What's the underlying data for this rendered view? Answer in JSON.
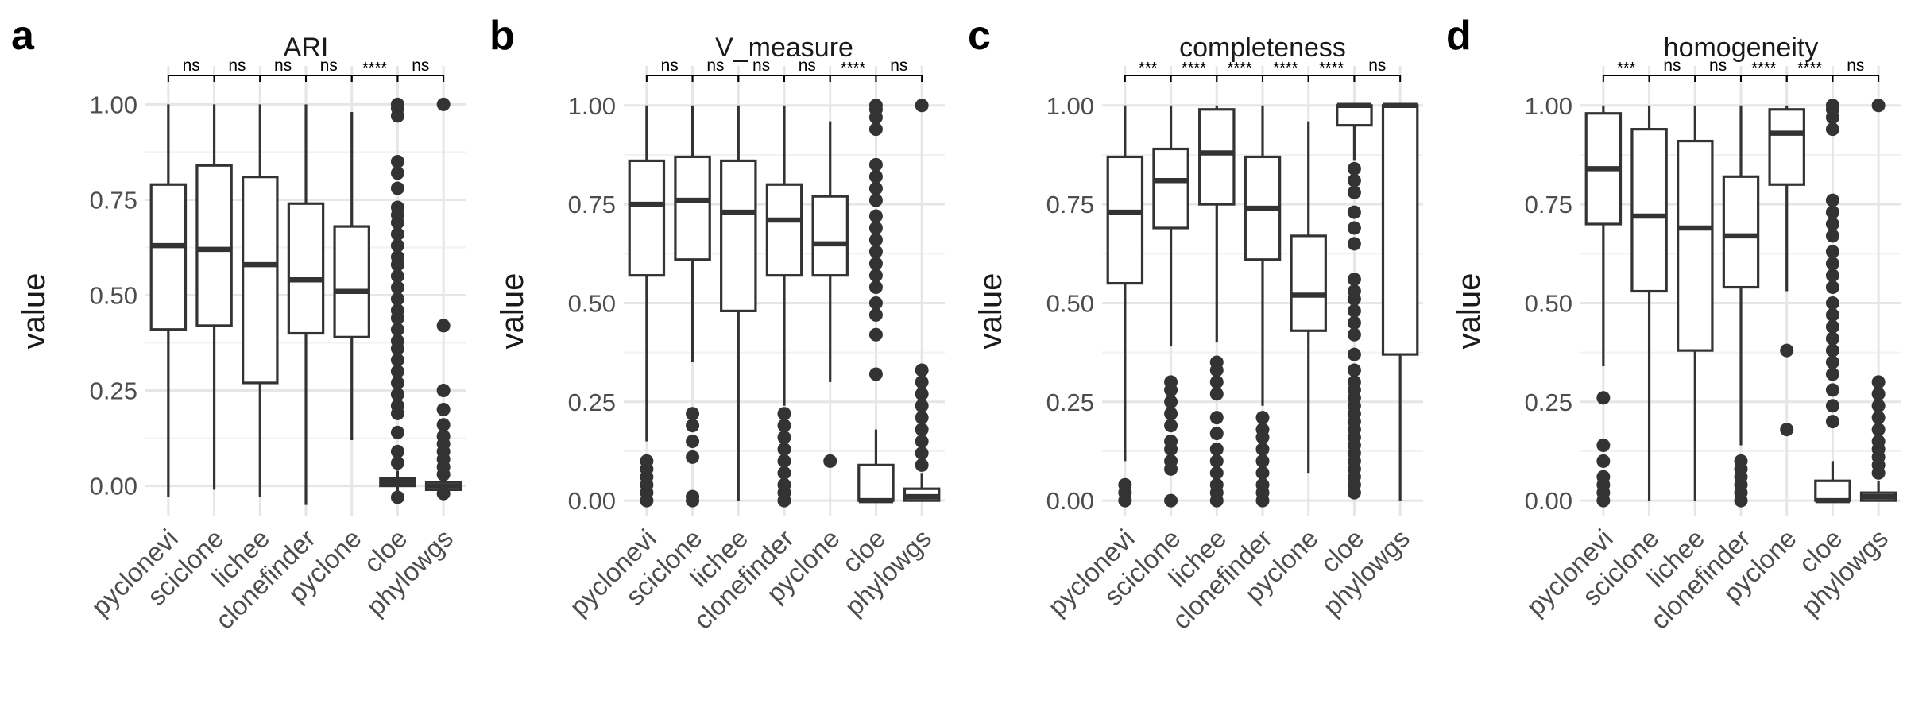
{
  "chart_data": [
    {
      "type": "box",
      "panel_label": "a",
      "title": "ARI",
      "ylabel": "value",
      "categories": [
        "pyclonevi",
        "sciclone",
        "lichee",
        "clonefinder",
        "pyclone",
        "cloe",
        "phylowgs"
      ],
      "ylim": [
        -0.08,
        1.08
      ],
      "yticks": [
        0.0,
        0.25,
        0.5,
        0.75,
        1.0
      ],
      "ytick_labels": [
        "0.00",
        "0.25",
        "0.50",
        "0.75",
        "1.00"
      ],
      "significance": [
        "ns",
        "ns",
        "ns",
        "ns",
        "****",
        "ns"
      ],
      "boxes": [
        {
          "category": "pyclonevi",
          "whisker_low": -0.03,
          "q1": 0.41,
          "median": 0.63,
          "q3": 0.79,
          "whisker_high": 1.0,
          "outliers": []
        },
        {
          "category": "sciclone",
          "whisker_low": -0.01,
          "q1": 0.42,
          "median": 0.62,
          "q3": 0.84,
          "whisker_high": 1.0,
          "outliers": []
        },
        {
          "category": "lichee",
          "whisker_low": -0.03,
          "q1": 0.27,
          "median": 0.58,
          "q3": 0.81,
          "whisker_high": 1.0,
          "outliers": []
        },
        {
          "category": "clonefinder",
          "whisker_low": -0.05,
          "q1": 0.4,
          "median": 0.54,
          "q3": 0.74,
          "whisker_high": 1.0,
          "outliers": []
        },
        {
          "category": "pyclone",
          "whisker_low": 0.12,
          "q1": 0.39,
          "median": 0.51,
          "q3": 0.68,
          "whisker_high": 0.98,
          "outliers": []
        },
        {
          "category": "cloe",
          "whisker_low": -0.02,
          "q1": 0.0,
          "median": 0.01,
          "q3": 0.02,
          "whisker_high": 0.04,
          "outliers": [
            -0.03,
            0.06,
            0.09,
            0.14,
            0.19,
            0.21,
            0.24,
            0.27,
            0.3,
            0.33,
            0.36,
            0.38,
            0.41,
            0.44,
            0.46,
            0.49,
            0.52,
            0.55,
            0.58,
            0.6,
            0.63,
            0.66,
            0.69,
            0.71,
            0.73,
            0.78,
            0.82,
            0.85,
            0.97,
            0.99,
            1.0
          ]
        },
        {
          "category": "phylowgs",
          "whisker_low": -0.01,
          "q1": -0.01,
          "median": 0.0,
          "q3": 0.01,
          "whisker_high": 0.02,
          "outliers": [
            -0.02,
            0.03,
            0.05,
            0.07,
            0.09,
            0.11,
            0.13,
            0.16,
            0.2,
            0.25,
            0.42,
            1.0
          ]
        }
      ]
    },
    {
      "type": "box",
      "panel_label": "b",
      "title": "V_measure",
      "ylabel": "value",
      "categories": [
        "pyclonevi",
        "sciclone",
        "lichee",
        "clonefinder",
        "pyclone",
        "cloe",
        "phylowgs"
      ],
      "ylim": [
        -0.04,
        1.08
      ],
      "yticks": [
        0.0,
        0.25,
        0.5,
        0.75,
        1.0
      ],
      "ytick_labels": [
        "0.00",
        "0.25",
        "0.50",
        "0.75",
        "1.00"
      ],
      "significance": [
        "ns",
        "ns",
        "ns",
        "ns",
        "****",
        "ns"
      ],
      "boxes": [
        {
          "category": "pyclonevi",
          "whisker_low": 0.15,
          "q1": 0.57,
          "median": 0.75,
          "q3": 0.86,
          "whisker_high": 1.0,
          "outliers": [
            0.0,
            0.02,
            0.04,
            0.06,
            0.08,
            0.1
          ]
        },
        {
          "category": "sciclone",
          "whisker_low": 0.35,
          "q1": 0.61,
          "median": 0.76,
          "q3": 0.87,
          "whisker_high": 1.0,
          "outliers": [
            0.0,
            0.01,
            0.11,
            0.15,
            0.19,
            0.22
          ]
        },
        {
          "category": "lichee",
          "whisker_low": 0.0,
          "q1": 0.48,
          "median": 0.73,
          "q3": 0.86,
          "whisker_high": 1.0,
          "outliers": []
        },
        {
          "category": "clonefinder",
          "whisker_low": 0.24,
          "q1": 0.57,
          "median": 0.71,
          "q3": 0.8,
          "whisker_high": 1.0,
          "outliers": [
            0.0,
            0.02,
            0.04,
            0.07,
            0.1,
            0.13,
            0.16,
            0.19,
            0.22
          ]
        },
        {
          "category": "pyclone",
          "whisker_low": 0.3,
          "q1": 0.57,
          "median": 0.65,
          "q3": 0.77,
          "whisker_high": 0.96,
          "outliers": [
            0.1
          ]
        },
        {
          "category": "cloe",
          "whisker_low": 0.0,
          "q1": 0.0,
          "median": 0.0,
          "q3": 0.09,
          "whisker_high": 0.18,
          "outliers": [
            0.32,
            0.42,
            0.47,
            0.5,
            0.54,
            0.57,
            0.6,
            0.63,
            0.66,
            0.69,
            0.72,
            0.76,
            0.79,
            0.82,
            0.85,
            0.94,
            0.97,
            0.99,
            1.0
          ]
        },
        {
          "category": "phylowgs",
          "whisker_low": 0.0,
          "q1": 0.0,
          "median": 0.01,
          "q3": 0.03,
          "whisker_high": 0.07,
          "outliers": [
            0.09,
            0.12,
            0.15,
            0.18,
            0.21,
            0.24,
            0.27,
            0.3,
            0.33,
            1.0
          ]
        }
      ]
    },
    {
      "type": "box",
      "panel_label": "c",
      "title": "completeness",
      "ylabel": "value",
      "categories": [
        "pyclonevi",
        "sciclone",
        "lichee",
        "clonefinder",
        "pyclone",
        "cloe",
        "phylowgs"
      ],
      "ylim": [
        -0.04,
        1.08
      ],
      "yticks": [
        0.0,
        0.25,
        0.5,
        0.75,
        1.0
      ],
      "ytick_labels": [
        "0.00",
        "0.25",
        "0.50",
        "0.75",
        "1.00"
      ],
      "significance": [
        "***",
        "****",
        "****",
        "****",
        "****",
        "ns"
      ],
      "boxes": [
        {
          "category": "pyclonevi",
          "whisker_low": 0.1,
          "q1": 0.55,
          "median": 0.73,
          "q3": 0.87,
          "whisker_high": 1.0,
          "outliers": [
            0.0,
            0.02,
            0.04
          ]
        },
        {
          "category": "sciclone",
          "whisker_low": 0.39,
          "q1": 0.69,
          "median": 0.81,
          "q3": 0.89,
          "whisker_high": 1.0,
          "outliers": [
            0.0,
            0.08,
            0.1,
            0.13,
            0.15,
            0.19,
            0.22,
            0.25,
            0.28,
            0.3
          ]
        },
        {
          "category": "lichee",
          "whisker_low": 0.4,
          "q1": 0.75,
          "median": 0.88,
          "q3": 0.99,
          "whisker_high": 1.0,
          "outliers": [
            0.0,
            0.02,
            0.04,
            0.07,
            0.1,
            0.13,
            0.17,
            0.21,
            0.27,
            0.3,
            0.33,
            0.35
          ]
        },
        {
          "category": "clonefinder",
          "whisker_low": 0.24,
          "q1": 0.61,
          "median": 0.74,
          "q3": 0.87,
          "whisker_high": 1.0,
          "outliers": [
            0.0,
            0.02,
            0.04,
            0.07,
            0.1,
            0.13,
            0.16,
            0.18,
            0.21
          ]
        },
        {
          "category": "pyclone",
          "whisker_low": 0.07,
          "q1": 0.43,
          "median": 0.52,
          "q3": 0.67,
          "whisker_high": 0.96,
          "outliers": []
        },
        {
          "category": "cloe",
          "whisker_low": 0.86,
          "q1": 0.95,
          "median": 1.0,
          "q3": 1.0,
          "whisker_high": 1.0,
          "outliers": [
            0.02,
            0.04,
            0.06,
            0.08,
            0.1,
            0.12,
            0.14,
            0.16,
            0.18,
            0.2,
            0.22,
            0.24,
            0.26,
            0.28,
            0.3,
            0.33,
            0.37,
            0.42,
            0.45,
            0.48,
            0.51,
            0.53,
            0.56,
            0.65,
            0.69,
            0.73,
            0.78,
            0.81,
            0.84
          ]
        },
        {
          "category": "phylowgs",
          "whisker_low": 0.0,
          "q1": 0.37,
          "median": 1.0,
          "q3": 1.0,
          "whisker_high": 1.0,
          "outliers": []
        }
      ]
    },
    {
      "type": "box",
      "panel_label": "d",
      "title": "homogeneity",
      "ylabel": "value",
      "categories": [
        "pyclonevi",
        "sciclone",
        "lichee",
        "clonefinder",
        "pyclone",
        "cloe",
        "phylowgs"
      ],
      "ylim": [
        -0.04,
        1.08
      ],
      "yticks": [
        0.0,
        0.25,
        0.5,
        0.75,
        1.0
      ],
      "ytick_labels": [
        "0.00",
        "0.25",
        "0.50",
        "0.75",
        "1.00"
      ],
      "significance": [
        "***",
        "ns",
        "ns",
        "****",
        "****",
        "ns"
      ],
      "boxes": [
        {
          "category": "pyclonevi",
          "whisker_low": 0.34,
          "q1": 0.7,
          "median": 0.84,
          "q3": 0.98,
          "whisker_high": 1.0,
          "outliers": [
            0.0,
            0.02,
            0.04,
            0.06,
            0.1,
            0.14,
            0.26
          ]
        },
        {
          "category": "sciclone",
          "whisker_low": 0.0,
          "q1": 0.53,
          "median": 0.72,
          "q3": 0.94,
          "whisker_high": 1.0,
          "outliers": []
        },
        {
          "category": "lichee",
          "whisker_low": 0.0,
          "q1": 0.38,
          "median": 0.69,
          "q3": 0.91,
          "whisker_high": 1.0,
          "outliers": []
        },
        {
          "category": "clonefinder",
          "whisker_low": 0.14,
          "q1": 0.54,
          "median": 0.67,
          "q3": 0.82,
          "whisker_high": 1.0,
          "outliers": [
            0.0,
            0.02,
            0.04,
            0.06,
            0.08,
            0.1
          ]
        },
        {
          "category": "pyclone",
          "whisker_low": 0.53,
          "q1": 0.8,
          "median": 0.93,
          "q3": 0.99,
          "whisker_high": 1.0,
          "outliers": [
            0.18,
            0.38
          ]
        },
        {
          "category": "cloe",
          "whisker_low": 0.0,
          "q1": 0.0,
          "median": 0.0,
          "q3": 0.05,
          "whisker_high": 0.1,
          "outliers": [
            0.2,
            0.24,
            0.28,
            0.32,
            0.35,
            0.38,
            0.41,
            0.44,
            0.47,
            0.5,
            0.54,
            0.57,
            0.6,
            0.63,
            0.67,
            0.7,
            0.73,
            0.76,
            0.94,
            0.97,
            0.99,
            1.0
          ]
        },
        {
          "category": "phylowgs",
          "whisker_low": 0.0,
          "q1": 0.0,
          "median": 0.01,
          "q3": 0.02,
          "whisker_high": 0.05,
          "outliers": [
            0.07,
            0.09,
            0.11,
            0.13,
            0.15,
            0.18,
            0.21,
            0.24,
            0.27,
            0.3,
            1.0
          ]
        }
      ]
    }
  ],
  "colors": {
    "box_stroke": "#333333",
    "point_fill": "#333333",
    "grid_major": "#e6e6e6",
    "grid_minor": "#f2f2f2",
    "axis_text": "#4d4d4d",
    "title_text": "#1a1a1a"
  }
}
